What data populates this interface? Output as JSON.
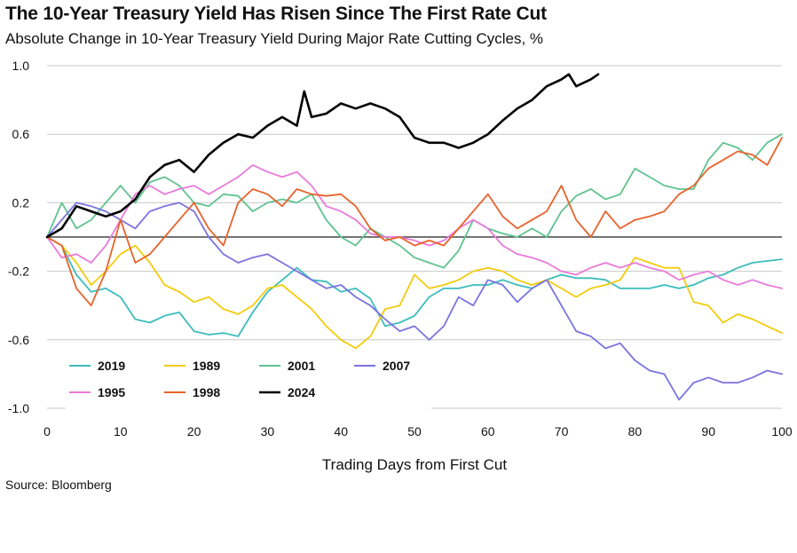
{
  "title": "The 10-Year Treasury Yield Has Risen Since The First Rate Cut",
  "subtitle": "Absolute Change in 10-Year Treasury Yield During Major Rate Cutting Cycles, %",
  "source": "Source: Bloomberg",
  "chart_data": {
    "type": "line",
    "title": "The 10-Year Treasury Yield Has Risen Since The First Rate Cut",
    "subtitle": "Absolute Change in 10-Year Treasury Yield During Major Rate Cutting Cycles, %",
    "xlabel": "Trading Days from First Cut",
    "ylabel": "",
    "xlim": [
      0,
      100
    ],
    "ylim": [
      -1.0,
      1.0
    ],
    "xticks": [
      0,
      10,
      20,
      30,
      40,
      50,
      60,
      70,
      80,
      90,
      100
    ],
    "yticks": [
      {
        "value": 1.0,
        "label": "1.0"
      },
      {
        "value": 0.6,
        "label": "0.6"
      },
      {
        "value": 0.2,
        "label": "0.2"
      },
      {
        "value": 0.0,
        "label": ""
      },
      {
        "value": -0.2,
        "label": "-0.2"
      },
      {
        "value": -0.6,
        "label": "-0.6"
      },
      {
        "value": -1.0,
        "label": "-1.0"
      }
    ],
    "grid": true,
    "legend_position": "bottom-left",
    "series": [
      {
        "name": "2019",
        "color": "#3dbcbc",
        "x": [
          0,
          2,
          4,
          6,
          8,
          10,
          12,
          14,
          16,
          18,
          20,
          22,
          24,
          26,
          28,
          30,
          32,
          34,
          36,
          38,
          40,
          42,
          44,
          46,
          48,
          50,
          52,
          54,
          56,
          58,
          60,
          62,
          64,
          66,
          68,
          70,
          72,
          74,
          76,
          78,
          80,
          82,
          84,
          86,
          88,
          90,
          92,
          94,
          96,
          98,
          100
        ],
        "values": [
          0,
          -0.05,
          -0.22,
          -0.32,
          -0.3,
          -0.35,
          -0.48,
          -0.5,
          -0.46,
          -0.44,
          -0.55,
          -0.57,
          -0.56,
          -0.58,
          -0.44,
          -0.32,
          -0.25,
          -0.18,
          -0.25,
          -0.26,
          -0.32,
          -0.3,
          -0.36,
          -0.52,
          -0.5,
          -0.46,
          -0.35,
          -0.3,
          -0.3,
          -0.28,
          -0.28,
          -0.25,
          -0.28,
          -0.3,
          -0.25,
          -0.22,
          -0.24,
          -0.24,
          -0.25,
          -0.3,
          -0.3,
          -0.3,
          -0.28,
          -0.3,
          -0.28,
          -0.24,
          -0.22,
          -0.18,
          -0.15,
          -0.14,
          -0.13
        ]
      },
      {
        "name": "1989",
        "color": "#f2cc0c",
        "x": [
          0,
          2,
          4,
          6,
          8,
          10,
          12,
          14,
          16,
          18,
          20,
          22,
          24,
          26,
          28,
          30,
          32,
          34,
          36,
          38,
          40,
          42,
          44,
          46,
          48,
          50,
          52,
          54,
          56,
          58,
          60,
          62,
          64,
          66,
          68,
          70,
          72,
          74,
          76,
          78,
          80,
          82,
          84,
          86,
          88,
          90,
          92,
          94,
          96,
          98,
          100
        ],
        "values": [
          0,
          -0.05,
          -0.15,
          -0.28,
          -0.2,
          -0.1,
          -0.05,
          -0.15,
          -0.28,
          -0.32,
          -0.38,
          -0.35,
          -0.42,
          -0.45,
          -0.4,
          -0.3,
          -0.28,
          -0.35,
          -0.42,
          -0.52,
          -0.6,
          -0.65,
          -0.58,
          -0.42,
          -0.4,
          -0.22,
          -0.3,
          -0.28,
          -0.25,
          -0.2,
          -0.18,
          -0.2,
          -0.25,
          -0.28,
          -0.25,
          -0.3,
          -0.35,
          -0.3,
          -0.28,
          -0.25,
          -0.12,
          -0.15,
          -0.18,
          -0.18,
          -0.38,
          -0.4,
          -0.5,
          -0.45,
          -0.48,
          -0.52,
          -0.56
        ]
      },
      {
        "name": "2001",
        "color": "#5ec38f",
        "x": [
          0,
          2,
          4,
          6,
          8,
          10,
          12,
          14,
          16,
          18,
          20,
          22,
          24,
          26,
          28,
          30,
          32,
          34,
          36,
          38,
          40,
          42,
          44,
          46,
          48,
          50,
          52,
          54,
          56,
          58,
          60,
          62,
          64,
          66,
          68,
          70,
          72,
          74,
          76,
          78,
          80,
          82,
          84,
          86,
          88,
          90,
          92,
          94,
          96,
          98,
          100
        ],
        "values": [
          0,
          0.2,
          0.05,
          0.1,
          0.2,
          0.3,
          0.2,
          0.32,
          0.35,
          0.3,
          0.2,
          0.18,
          0.25,
          0.24,
          0.15,
          0.2,
          0.22,
          0.2,
          0.25,
          0.1,
          0.0,
          -0.05,
          0.05,
          0.0,
          -0.05,
          -0.12,
          -0.15,
          -0.18,
          -0.08,
          0.1,
          0.05,
          0.02,
          0.0,
          0.05,
          0.0,
          0.15,
          0.24,
          0.28,
          0.22,
          0.25,
          0.4,
          0.35,
          0.3,
          0.28,
          0.28,
          0.45,
          0.55,
          0.52,
          0.45,
          0.55,
          0.6
        ]
      },
      {
        "name": "2007",
        "color": "#7b73e0",
        "x": [
          0,
          2,
          4,
          6,
          8,
          10,
          12,
          14,
          16,
          18,
          20,
          22,
          24,
          26,
          28,
          30,
          32,
          34,
          36,
          38,
          40,
          42,
          44,
          46,
          48,
          50,
          52,
          54,
          56,
          58,
          60,
          62,
          64,
          66,
          68,
          70,
          72,
          74,
          76,
          78,
          80,
          82,
          84,
          86,
          88,
          90,
          92,
          94,
          96,
          98,
          100
        ],
        "values": [
          0,
          0.1,
          0.2,
          0.18,
          0.15,
          0.1,
          0.05,
          0.15,
          0.18,
          0.2,
          0.15,
          0.0,
          -0.1,
          -0.15,
          -0.12,
          -0.1,
          -0.15,
          -0.2,
          -0.25,
          -0.3,
          -0.28,
          -0.35,
          -0.4,
          -0.48,
          -0.55,
          -0.52,
          -0.6,
          -0.52,
          -0.35,
          -0.4,
          -0.25,
          -0.28,
          -0.38,
          -0.3,
          -0.25,
          -0.4,
          -0.55,
          -0.58,
          -0.65,
          -0.62,
          -0.72,
          -0.78,
          -0.8,
          -0.95,
          -0.85,
          -0.82,
          -0.85,
          -0.85,
          -0.82,
          -0.78,
          -0.8
        ]
      },
      {
        "name": "1995",
        "color": "#ea7ada",
        "x": [
          0,
          2,
          4,
          6,
          8,
          10,
          12,
          14,
          16,
          18,
          20,
          22,
          24,
          26,
          28,
          30,
          32,
          34,
          36,
          38,
          40,
          42,
          44,
          46,
          48,
          50,
          52,
          54,
          56,
          58,
          60,
          62,
          64,
          66,
          68,
          70,
          72,
          74,
          76,
          78,
          80,
          82,
          84,
          86,
          88,
          90,
          92,
          94,
          96,
          98,
          100
        ],
        "values": [
          0,
          -0.12,
          -0.1,
          -0.15,
          -0.05,
          0.1,
          0.25,
          0.3,
          0.25,
          0.28,
          0.3,
          0.25,
          0.3,
          0.35,
          0.42,
          0.38,
          0.35,
          0.38,
          0.3,
          0.18,
          0.15,
          0.1,
          0.02,
          0.0,
          0.0,
          -0.02,
          -0.05,
          -0.02,
          0.05,
          0.1,
          0.05,
          -0.05,
          -0.1,
          -0.12,
          -0.15,
          -0.2,
          -0.22,
          -0.18,
          -0.15,
          -0.18,
          -0.15,
          -0.18,
          -0.2,
          -0.25,
          -0.22,
          -0.2,
          -0.25,
          -0.28,
          -0.25,
          -0.28,
          -0.3
        ]
      },
      {
        "name": "1998",
        "color": "#e8622a",
        "x": [
          0,
          2,
          4,
          6,
          8,
          10,
          12,
          14,
          16,
          18,
          20,
          22,
          24,
          26,
          28,
          30,
          32,
          34,
          36,
          38,
          40,
          42,
          44,
          46,
          48,
          50,
          52,
          54,
          56,
          58,
          60,
          62,
          64,
          66,
          68,
          70,
          72,
          74,
          76,
          78,
          80,
          82,
          84,
          86,
          88,
          90,
          92,
          94,
          96,
          98,
          100
        ],
        "values": [
          0,
          -0.05,
          -0.3,
          -0.4,
          -0.2,
          0.1,
          -0.15,
          -0.1,
          0.0,
          0.1,
          0.2,
          0.05,
          -0.05,
          0.2,
          0.28,
          0.25,
          0.18,
          0.28,
          0.25,
          0.24,
          0.25,
          0.18,
          0.05,
          -0.02,
          0.0,
          -0.05,
          -0.02,
          -0.05,
          0.05,
          0.15,
          0.25,
          0.12,
          0.05,
          0.1,
          0.15,
          0.3,
          0.1,
          0.0,
          0.15,
          0.05,
          0.1,
          0.12,
          0.15,
          0.25,
          0.3,
          0.4,
          0.45,
          0.5,
          0.48,
          0.42,
          0.58
        ]
      },
      {
        "name": "2024",
        "color": "#000000",
        "x": [
          0,
          2,
          4,
          6,
          8,
          10,
          12,
          14,
          16,
          18,
          20,
          22,
          24,
          26,
          28,
          30,
          32,
          34,
          35,
          36,
          38,
          40,
          42,
          44,
          46,
          48,
          50,
          52,
          54,
          56,
          58,
          60,
          62,
          64,
          66,
          68,
          70,
          71,
          72,
          74,
          75
        ],
        "values": [
          0,
          0.05,
          0.18,
          0.15,
          0.12,
          0.15,
          0.22,
          0.35,
          0.42,
          0.45,
          0.38,
          0.48,
          0.55,
          0.6,
          0.58,
          0.65,
          0.7,
          0.65,
          0.85,
          0.7,
          0.72,
          0.78,
          0.75,
          0.78,
          0.75,
          0.7,
          0.58,
          0.55,
          0.55,
          0.52,
          0.55,
          0.6,
          0.68,
          0.75,
          0.8,
          0.88,
          0.92,
          0.95,
          0.88,
          0.92,
          0.95
        ]
      }
    ]
  }
}
